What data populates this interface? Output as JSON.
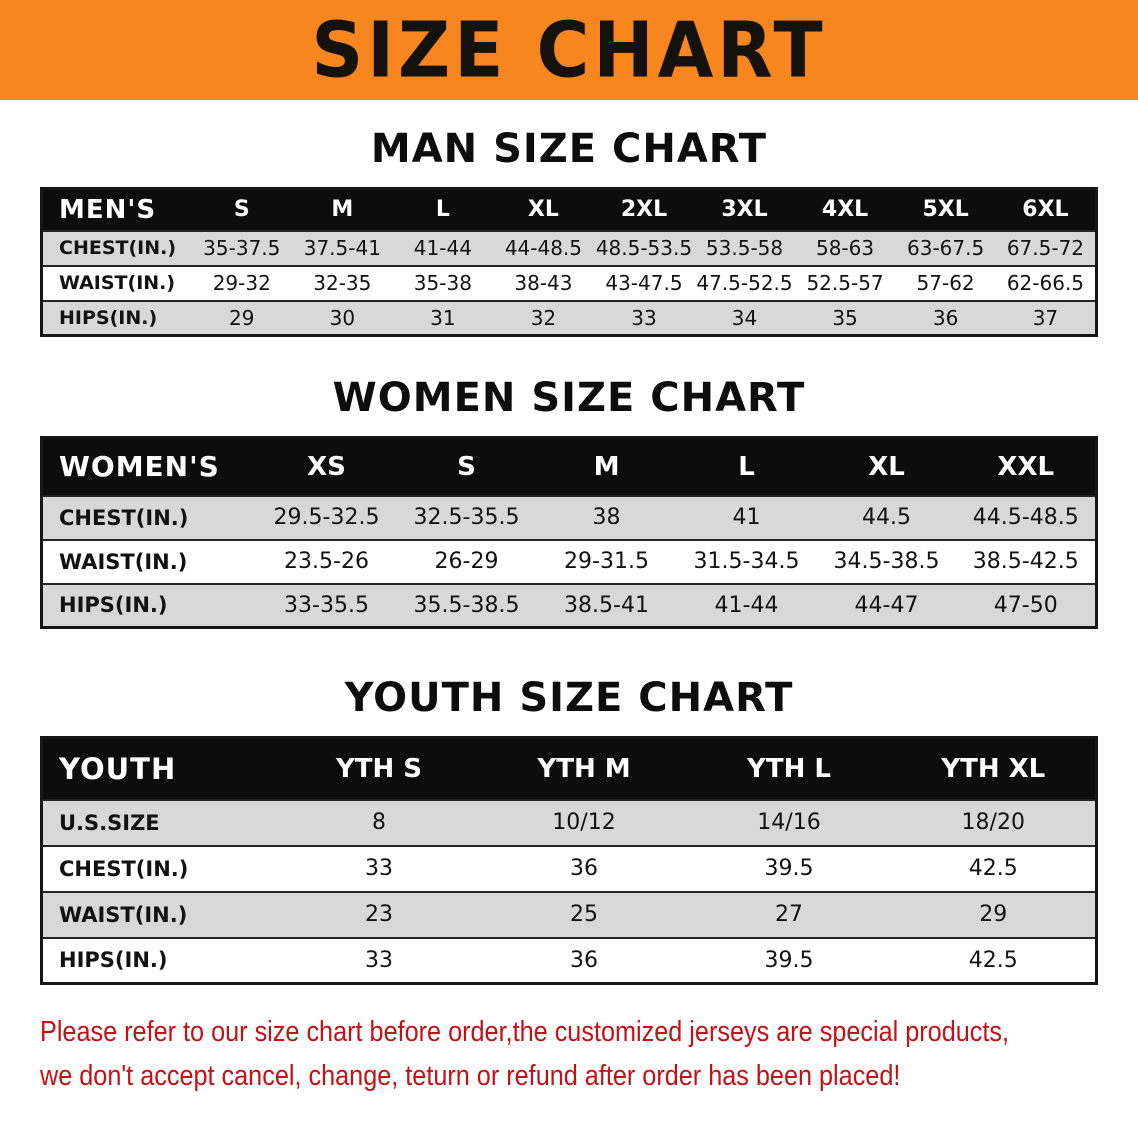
{
  "banner": {
    "title": "SIZE CHART"
  },
  "colors": {
    "banner_bg": "#F6861D",
    "table_header_bg": "#0D0D0D",
    "row_gray": "#D8D8D8",
    "footer_red": "#C51016"
  },
  "tables": [
    {
      "id": "mens",
      "heading": "MAN SIZE CHART",
      "corner": "MEN'S",
      "columns": [
        "S",
        "M",
        "L",
        "XL",
        "2XL",
        "3XL",
        "4XL",
        "5XL",
        "6XL"
      ],
      "rows": [
        {
          "label": "CHEST(IN.)",
          "values": [
            "35-37.5",
            "37.5-41",
            "41-44",
            "44-48.5",
            "48.5-53.5",
            "53.5-58",
            "58-63",
            "63-67.5",
            "67.5-72"
          ]
        },
        {
          "label": "WAIST(IN.)",
          "values": [
            "29-32",
            "32-35",
            "35-38",
            "38-43",
            "43-47.5",
            "47.5-52.5",
            "52.5-57",
            "57-62",
            "62-66.5"
          ]
        },
        {
          "label": "HIPS(IN.)",
          "values": [
            "29",
            "30",
            "31",
            "32",
            "33",
            "34",
            "35",
            "36",
            "37"
          ]
        }
      ]
    },
    {
      "id": "womens",
      "heading": "WOMEN SIZE CHART",
      "corner": "WOMEN'S",
      "columns": [
        "XS",
        "S",
        "M",
        "L",
        "XL",
        "XXL"
      ],
      "rows": [
        {
          "label": "CHEST(IN.)",
          "values": [
            "29.5-32.5",
            "32.5-35.5",
            "38",
            "41",
            "44.5",
            "44.5-48.5"
          ]
        },
        {
          "label": "WAIST(IN.)",
          "values": [
            "23.5-26",
            "26-29",
            "29-31.5",
            "31.5-34.5",
            "34.5-38.5",
            "38.5-42.5"
          ]
        },
        {
          "label": "HIPS(IN.)",
          "values": [
            "33-35.5",
            "35.5-38.5",
            "38.5-41",
            "41-44",
            "44-47",
            "47-50"
          ]
        }
      ]
    },
    {
      "id": "youth",
      "heading": "YOUTH SIZE CHART",
      "corner": "YOUTH",
      "columns": [
        "YTH S",
        "YTH M",
        "YTH L",
        "YTH XL"
      ],
      "rows": [
        {
          "label": "U.S.SIZE",
          "values": [
            "8",
            "10/12",
            "14/16",
            "18/20"
          ]
        },
        {
          "label": "CHEST(IN.)",
          "values": [
            "33",
            "36",
            "39.5",
            "42.5"
          ]
        },
        {
          "label": "WAIST(IN.)",
          "values": [
            "23",
            "25",
            "27",
            "29"
          ]
        },
        {
          "label": "HIPS(IN.)",
          "values": [
            "33",
            "36",
            "39.5",
            "42.5"
          ]
        }
      ]
    }
  ],
  "footer": {
    "line1": "Please refer to our size chart before order,the customized jerseys are special products,",
    "line2": "we don't accept cancel, change, teturn or refund after order has been placed!"
  }
}
